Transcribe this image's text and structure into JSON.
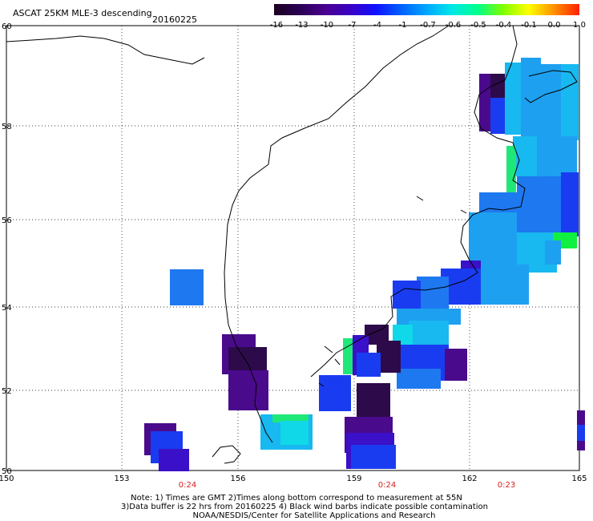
{
  "header": {
    "title": "ASCAT 25KM MLE-3 descending",
    "date": "20160225"
  },
  "colorbar": {
    "ticks": [
      "-16",
      "-13",
      "-10",
      "-7",
      "-4",
      "-1",
      "-0.7",
      "-0.6",
      "-0.5",
      "-0.4",
      "-0.1",
      "0.0",
      "1.0"
    ],
    "colors": [
      "#1b0020",
      "#2b0052",
      "#4a0090",
      "#3a00c4",
      "#1010ff",
      "#0060ff",
      "#00a8ff",
      "#00e8e8",
      "#00ff8c",
      "#80ff00",
      "#ffff00",
      "#ff9000",
      "#ff2000"
    ]
  },
  "map": {
    "lat_labels": [
      "60",
      "58",
      "56",
      "54",
      "52",
      "50"
    ],
    "lon_labels": [
      "150",
      "153",
      "156",
      "159",
      "162",
      "165"
    ],
    "pass_times": [
      "0:24",
      "0:24",
      "0:23"
    ],
    "time_color": "#d2221e"
  },
  "footer": {
    "line1": "Note: 1) Times are GMT 2)Times along bottom correspond to measurement at 55N",
    "line2": "3)Data buffer is 22 hrs from 20160225 4) Black wind barbs indicate possible contamination",
    "line3": "NOAA/NESDIS/Center for Satellite Applications and Research"
  }
}
